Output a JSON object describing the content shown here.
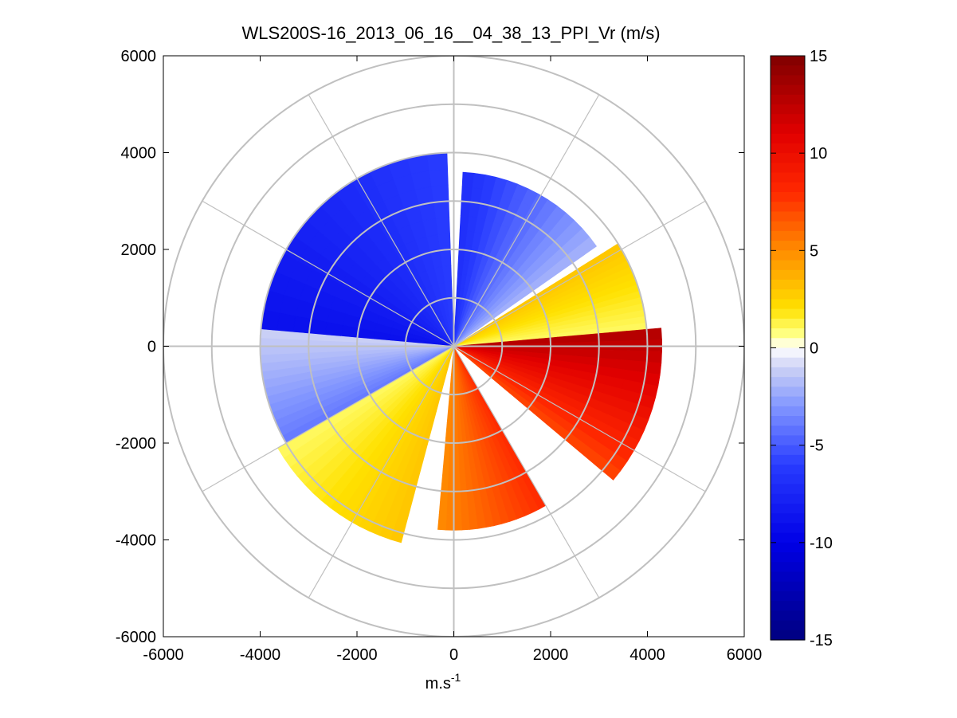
{
  "chart_data": {
    "type": "heatmap",
    "subtype": "polar-ppi",
    "title": "WLS200S-16_2013_06_16__04_38_13_PPI_Vr (m/s)",
    "xlabel": "m.s",
    "xlabel_superscript": "-1",
    "ylabel": "",
    "xlim": [
      -6000,
      6000
    ],
    "ylim": [
      -6000,
      6000
    ],
    "x_ticks": [
      "-6000",
      "-4000",
      "-2000",
      "0",
      "2000",
      "4000",
      "6000"
    ],
    "y_ticks": [
      "6000",
      "4000",
      "2000",
      "0",
      "-2000",
      "-4000",
      "-6000"
    ],
    "range_rings": [
      1000,
      2000,
      3000,
      4000,
      5000,
      6000
    ],
    "spoke_step_deg": 30,
    "grid": true,
    "colorbar": {
      "min": -15,
      "max": 15,
      "ticks": [
        "15",
        "10",
        "5",
        "0",
        "-5",
        "-10",
        "-15"
      ],
      "placement": "right"
    },
    "sectors": [
      {
        "az": [
          275,
          358
        ],
        "r": [
          0,
          4000
        ],
        "vr": [
          -9,
          -6
        ],
        "note": "west-northwest sector, blue"
      },
      {
        "az": [
          3,
          55
        ],
        "r": [
          0,
          3600
        ],
        "vr": [
          -7,
          -2
        ],
        "note": "northeast sector, blue fading to white"
      },
      {
        "az": [
          58,
          85
        ],
        "r": [
          0,
          4000
        ],
        "vr": [
          3,
          1
        ],
        "note": "east-northeast, yellow/orange"
      },
      {
        "az": [
          85,
          130
        ],
        "r": [
          0,
          4300
        ],
        "vr": [
          13,
          7
        ],
        "note": "east-southeast, dark red to orange"
      },
      {
        "az": [
          150,
          185
        ],
        "r": [
          0,
          3800
        ],
        "vr": [
          8,
          5
        ],
        "note": "south, orange-red"
      },
      {
        "az": [
          195,
          240
        ],
        "r": [
          0,
          4200
        ],
        "vr": [
          3,
          1
        ],
        "note": "southwest, yellow"
      },
      {
        "az": [
          240,
          275
        ],
        "r": [
          0,
          4000
        ],
        "vr": [
          -4,
          -1
        ],
        "note": "west-southwest, pale blue"
      }
    ]
  }
}
